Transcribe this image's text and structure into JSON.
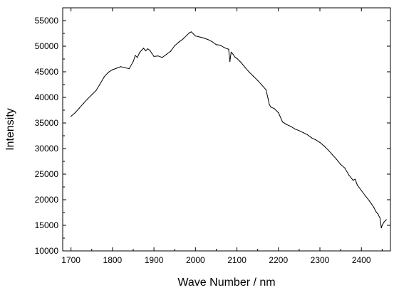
{
  "chart_data": {
    "type": "line",
    "title": "",
    "xlabel": "Wave Number / nm",
    "ylabel": "Intensity",
    "xlim": [
      1680,
      2470
    ],
    "ylim": [
      10000,
      57500
    ],
    "x_ticks": [
      1700,
      1800,
      1900,
      2000,
      2100,
      2200,
      2300,
      2400
    ],
    "y_ticks": [
      10000,
      15000,
      20000,
      25000,
      30000,
      35000,
      40000,
      45000,
      50000,
      55000
    ],
    "grid": false,
    "legend": "none",
    "line_color": "#000000",
    "series": [
      {
        "x": [
          1700,
          1710,
          1720,
          1730,
          1740,
          1750,
          1760,
          1770,
          1780,
          1790,
          1800,
          1810,
          1820,
          1830,
          1840,
          1850,
          1855,
          1860,
          1865,
          1870,
          1875,
          1880,
          1885,
          1890,
          1895,
          1900,
          1910,
          1920,
          1930,
          1940,
          1950,
          1960,
          1970,
          1980,
          1985,
          1990,
          1995,
          2000,
          2010,
          2020,
          2030,
          2040,
          2050,
          2060,
          2070,
          2080,
          2083,
          2086,
          2090,
          2095,
          2100,
          2110,
          2120,
          2130,
          2140,
          2150,
          2160,
          2170,
          2175,
          2178,
          2182,
          2190,
          2200,
          2210,
          2220,
          2230,
          2240,
          2250,
          2260,
          2270,
          2280,
          2290,
          2300,
          2310,
          2320,
          2330,
          2340,
          2350,
          2360,
          2370,
          2380,
          2385,
          2390,
          2400,
          2410,
          2420,
          2430,
          2435,
          2440,
          2445,
          2448,
          2450,
          2455,
          2460
        ],
        "y": [
          36300,
          37000,
          37900,
          38800,
          39700,
          40500,
          41300,
          42600,
          44000,
          44900,
          45400,
          45700,
          46000,
          45800,
          45600,
          47000,
          48200,
          47800,
          48700,
          49200,
          49600,
          49100,
          49500,
          49200,
          48600,
          48000,
          48100,
          47800,
          48400,
          49000,
          50100,
          50800,
          51400,
          52200,
          52600,
          52800,
          52400,
          52000,
          51800,
          51600,
          51300,
          50900,
          50300,
          50200,
          49700,
          49400,
          47000,
          48800,
          48500,
          47900,
          47600,
          46800,
          45800,
          44900,
          44100,
          43300,
          42400,
          41500,
          39800,
          38600,
          38100,
          37800,
          37000,
          35200,
          34700,
          34300,
          33800,
          33500,
          33100,
          32700,
          32100,
          31700,
          31200,
          30500,
          29700,
          28800,
          27900,
          26900,
          26200,
          24800,
          23800,
          24000,
          22900,
          21800,
          20700,
          19700,
          18500,
          17700,
          17200,
          16400,
          14500,
          15000,
          15700,
          16100
        ]
      }
    ]
  }
}
